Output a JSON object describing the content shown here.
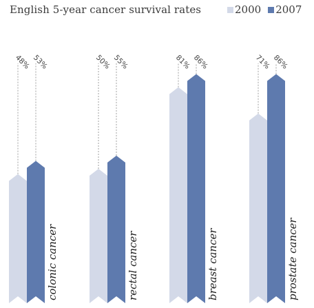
{
  "chart_data": {
    "type": "bar",
    "title": "English 5-year cancer survival rates",
    "categories": [
      "colonic cancer",
      "rectal cancer",
      "breast cancer",
      "prostate cancer"
    ],
    "series": [
      {
        "name": "2000",
        "values": [
          48,
          50,
          81,
          71
        ],
        "labels": [
          "48%",
          "50%",
          "81%",
          "71%"
        ],
        "color": "#d3d9e8"
      },
      {
        "name": "2007",
        "values": [
          53,
          55,
          86,
          86
        ],
        "labels": [
          "53%",
          "55%",
          "86%",
          "86%"
        ],
        "color": "#5e7aae"
      }
    ],
    "ylim": [
      0,
      100
    ],
    "grid": false,
    "legend": "top-right"
  }
}
